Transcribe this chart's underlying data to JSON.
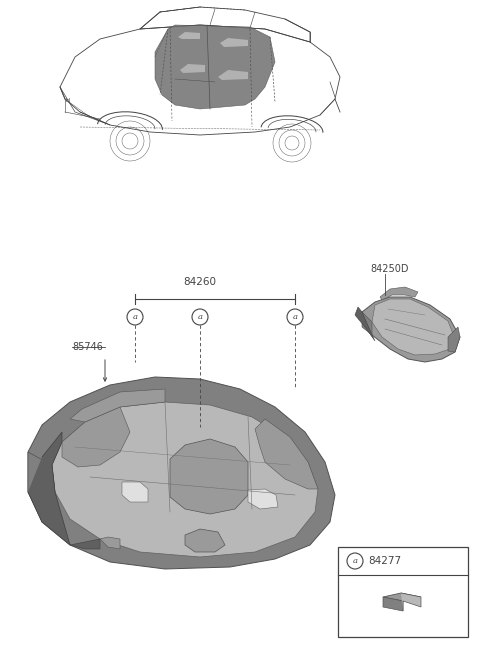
{
  "background_color": "#ffffff",
  "line_color": "#444444",
  "fig_width": 4.8,
  "fig_height": 6.57,
  "dpi": 100,
  "label_84260": "84260",
  "label_84250D": "84250D",
  "label_85746": "85746",
  "label_84277": "84277",
  "part_gray_dark": "#808080",
  "part_gray_mid": "#9a9a9a",
  "part_gray_light": "#b8b8b8",
  "part_gray_lighter": "#cccccc",
  "part_gray_darkest": "#606060"
}
